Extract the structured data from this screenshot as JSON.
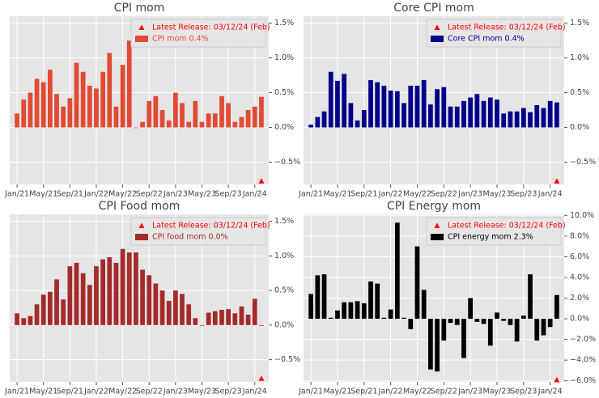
{
  "chart_data": [
    {
      "type": "bar",
      "title": "CPI mom",
      "categories": [
        "Jan/21",
        null,
        null,
        null,
        "May/21",
        null,
        null,
        null,
        "Sep/21",
        null,
        null,
        null,
        "Jan/22",
        null,
        null,
        null,
        "May/22",
        null,
        null,
        null,
        "Sep/22",
        null,
        null,
        null,
        "Jan/23",
        null,
        null,
        null,
        "May/23",
        null,
        null,
        null,
        "Sep/23",
        null,
        null,
        null,
        "Jan/24",
        null
      ],
      "series": [
        {
          "name": "CPI mom 0.4%",
          "color": "#e24a33",
          "values": [
            0.2,
            0.4,
            0.5,
            0.7,
            0.65,
            0.83,
            0.48,
            0.3,
            0.42,
            0.93,
            0.8,
            0.6,
            0.56,
            0.8,
            1.07,
            0.3,
            0.9,
            1.25,
            0.0,
            0.08,
            0.38,
            0.45,
            0.25,
            0.1,
            0.5,
            0.35,
            0.08,
            0.38,
            0.08,
            0.2,
            0.2,
            0.45,
            0.35,
            0.08,
            0.15,
            0.25,
            0.3,
            0.44
          ]
        }
      ],
      "latest_marker": {
        "name": "Latest Release: 03/12/24 (Feb)",
        "color": "#ff0000",
        "value": -0.77
      },
      "ylim": [
        -0.82,
        1.6
      ],
      "yticks": [
        {
          "value": -0.5,
          "label": "−0.5%"
        },
        {
          "value": 0,
          "label": "0.0%"
        },
        {
          "value": 0.5,
          "label": "0.5%"
        },
        {
          "value": 1.0,
          "label": "1.0%"
        },
        {
          "value": 1.5,
          "label": "1.5%"
        }
      ],
      "grid": true
    },
    {
      "type": "bar",
      "title": "Core CPI mom",
      "categories": [
        "Jan/21",
        null,
        null,
        null,
        "May/21",
        null,
        null,
        null,
        "Sep/21",
        null,
        null,
        null,
        "Jan/22",
        null,
        null,
        null,
        "May/22",
        null,
        null,
        null,
        "Sep/22",
        null,
        null,
        null,
        "Jan/23",
        null,
        null,
        null,
        "May/23",
        null,
        null,
        null,
        "Sep/23",
        null,
        null,
        null,
        "Jan/24",
        null
      ],
      "series": [
        {
          "name": "Core CPI mom 0.4%",
          "color": "#00008b",
          "values": [
            0.04,
            0.15,
            0.23,
            0.8,
            0.67,
            0.77,
            0.35,
            0.1,
            0.25,
            0.68,
            0.65,
            0.6,
            0.53,
            0.52,
            0.35,
            0.6,
            0.6,
            0.68,
            0.33,
            0.55,
            0.58,
            0.3,
            0.3,
            0.38,
            0.43,
            0.48,
            0.38,
            0.43,
            0.4,
            0.2,
            0.23,
            0.23,
            0.28,
            0.22,
            0.32,
            0.28,
            0.38,
            0.36
          ]
        }
      ],
      "latest_marker": {
        "name": "Latest Release: 03/12/24 (Feb)",
        "color": "#ff0000",
        "value": -0.77
      },
      "ylim": [
        -0.82,
        1.6
      ],
      "yticks": [
        {
          "value": -0.5,
          "label": "−0.5%"
        },
        {
          "value": 0,
          "label": "0.0%"
        },
        {
          "value": 0.5,
          "label": "0.5%"
        },
        {
          "value": 1.0,
          "label": "1.0%"
        },
        {
          "value": 1.5,
          "label": "1.5%"
        }
      ],
      "grid": true
    },
    {
      "type": "bar",
      "title": "CPI Food mom",
      "categories": [
        "Jan/21",
        null,
        null,
        null,
        "May/21",
        null,
        null,
        null,
        "Sep/21",
        null,
        null,
        null,
        "Jan/22",
        null,
        null,
        null,
        "May/22",
        null,
        null,
        null,
        "Sep/22",
        null,
        null,
        null,
        "Jan/23",
        null,
        null,
        null,
        "May/23",
        null,
        null,
        null,
        "Sep/23",
        null,
        null,
        null,
        "Jan/24",
        null
      ],
      "series": [
        {
          "name": "CPI food mom 0.0%",
          "color": "#a52a2a",
          "values": [
            0.17,
            0.1,
            0.13,
            0.3,
            0.44,
            0.48,
            0.66,
            0.37,
            0.85,
            0.9,
            0.75,
            0.58,
            0.85,
            0.95,
            0.98,
            0.9,
            1.1,
            1.05,
            1.05,
            0.8,
            0.72,
            0.6,
            0.5,
            0.35,
            0.5,
            0.45,
            0.3,
            0.1,
            0.0,
            0.18,
            0.2,
            0.22,
            0.23,
            0.17,
            0.27,
            0.15,
            0.38,
            0.0
          ]
        }
      ],
      "latest_marker": {
        "name": "Latest Release: 03/12/24 (Feb)",
        "color": "#ff0000",
        "value": -0.77
      },
      "ylim": [
        -0.82,
        1.6
      ],
      "yticks": [
        {
          "value": -0.5,
          "label": "−0.5%"
        },
        {
          "value": 0,
          "label": "0.0%"
        },
        {
          "value": 0.5,
          "label": "0.5%"
        },
        {
          "value": 1.0,
          "label": "1.0%"
        },
        {
          "value": 1.5,
          "label": "1.5%"
        }
      ],
      "grid": true
    },
    {
      "type": "bar",
      "title": "CPI Energy mom",
      "categories": [
        "Jan/21",
        null,
        null,
        null,
        "May/21",
        null,
        null,
        null,
        "Sep/21",
        null,
        null,
        null,
        "Jan/22",
        null,
        null,
        null,
        "May/22",
        null,
        null,
        null,
        "Sep/22",
        null,
        null,
        null,
        "Jan/23",
        null,
        null,
        null,
        "May/23",
        null,
        null,
        null,
        "Sep/23",
        null,
        null,
        null,
        "Jan/24",
        null
      ],
      "series": [
        {
          "name": "CPI energy mom 2.3%",
          "color": "#000000",
          "values": [
            2.4,
            4.2,
            4.3,
            0.1,
            0.8,
            1.6,
            1.6,
            1.7,
            1.5,
            3.6,
            3.4,
            0.1,
            0.9,
            9.3,
            0.1,
            -1.0,
            7.0,
            2.8,
            -4.9,
            -5.1,
            -2.1,
            -0.4,
            -0.6,
            -3.8,
            2.0,
            -0.3,
            -0.5,
            -2.6,
            0.6,
            -0.2,
            -0.6,
            -2.2,
            0.3,
            4.3,
            -2.1,
            -1.6,
            -0.8,
            2.3
          ]
        }
      ],
      "latest_marker": {
        "name": "Latest Release: 03/12/24 (Feb)",
        "color": "#ff0000",
        "value": -5.9
      },
      "ylim": [
        -6.1,
        10.1
      ],
      "yticks": [
        {
          "value": -6,
          "label": "−6.0%"
        },
        {
          "value": -4,
          "label": "−4.0%"
        },
        {
          "value": -2,
          "label": "−2.0%"
        },
        {
          "value": 0,
          "label": "0.0%"
        },
        {
          "value": 2,
          "label": "2.0%"
        },
        {
          "value": 4,
          "label": "4.0%"
        },
        {
          "value": 6,
          "label": "6.0%"
        },
        {
          "value": 8,
          "label": "8.0%"
        },
        {
          "value": 10,
          "label": "10.0%"
        }
      ],
      "grid": true
    }
  ]
}
